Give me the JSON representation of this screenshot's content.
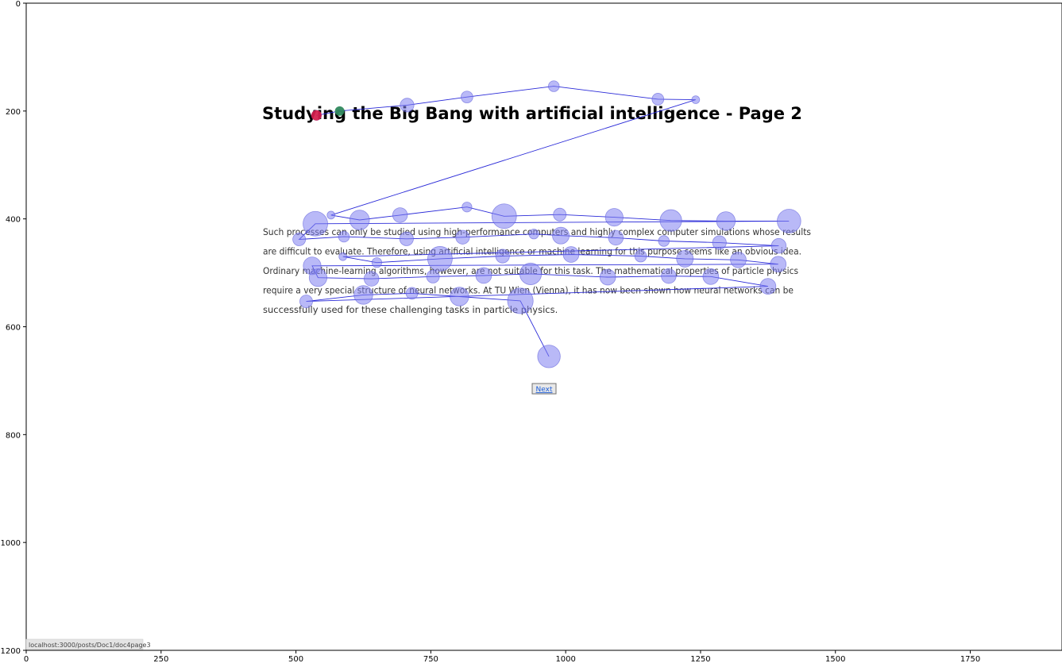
{
  "page": {
    "title": "Studying the Big Bang with artificial intelligence - Page 2",
    "paragraph_lines": [
      "Such processes can only be studied using high-performance computers and highly complex computer simulations whose results",
      "are difficult to evaluate. Therefore, using artificial intelligence or machine learning for this purpose seems like an obvious idea.",
      "Ordinary machine-learning algorithms, however, are not suitable for this task. The mathematical properties of particle physics",
      "require a very special structure of neural networks. At TU Wien (Vienna), it has now been shown how neural networks can be",
      "successfully used for these challenging tasks in particle physics."
    ],
    "next_label": "Next",
    "status_url": "localhost:3000/posts/Doc1/doc4page3"
  },
  "colors": {
    "fixation_fill": "#8080f0",
    "scanpath_line": "#2a2ad8",
    "start_marker": "#2e8b57",
    "end_marker": "#dc143c"
  },
  "chart_data": {
    "type": "scatter",
    "title": "",
    "xlabel": "",
    "ylabel": "",
    "xlim": [
      0,
      1920
    ],
    "ylim": [
      1200,
      0
    ],
    "x_ticks": [
      0,
      250,
      500,
      750,
      1000,
      1250,
      1500,
      1750
    ],
    "y_ticks": [
      0,
      200,
      400,
      600,
      800,
      1000,
      1200
    ],
    "grid": false,
    "legend": "none",
    "series": [
      {
        "x": [
          538,
          581,
          706,
          817,
          978,
          1171,
          1241
        ],
        "y": [
          208,
          200,
          189,
          174,
          154,
          178,
          179
        ],
        "size": [
          10,
          8,
          14,
          12,
          11,
          12,
          8
        ]
      },
      {
        "x": [
          565,
          618,
          693,
          817,
          886,
          989,
          1090,
          1195,
          1297,
          1414
        ],
        "y": [
          393,
          402,
          393,
          378,
          395,
          392,
          397,
          403,
          404,
          404
        ],
        "size": [
          8,
          20,
          15,
          10,
          25,
          13,
          18,
          22,
          19,
          24
        ]
      },
      {
        "x": [
          536,
          506,
          589,
          705,
          809,
          941,
          991,
          1093,
          1182,
          1285,
          1395
        ],
        "y": [
          409,
          438,
          433,
          437,
          434,
          428,
          431,
          435,
          441,
          444,
          450
        ],
        "size": [
          25,
          13,
          11,
          14,
          14,
          10,
          17,
          15,
          11,
          14,
          15
        ]
      },
      {
        "x": [
          587,
          650,
          767,
          883,
          1010,
          1139,
          1221,
          1320,
          1394
        ],
        "y": [
          470,
          481,
          474,
          469,
          466,
          469,
          474,
          476,
          484
        ],
        "size": [
          8,
          10,
          25,
          14,
          16,
          12,
          17,
          16,
          16
        ]
      },
      {
        "x": [
          530,
          541,
          640,
          754,
          848,
          935,
          1078,
          1191,
          1269,
          1375
        ],
        "y": [
          487,
          509,
          511,
          507,
          505,
          502,
          508,
          506,
          507,
          525
        ],
        "size": [
          18,
          18,
          15,
          13,
          16,
          22,
          16,
          15,
          16,
          16
        ]
      },
      {
        "x": [
          519,
          625,
          715,
          803,
          916,
          969
        ],
        "y": [
          553,
          541,
          538,
          544,
          552,
          655
        ],
        "size": [
          13,
          19,
          12,
          19,
          26,
          23
        ]
      }
    ]
  }
}
